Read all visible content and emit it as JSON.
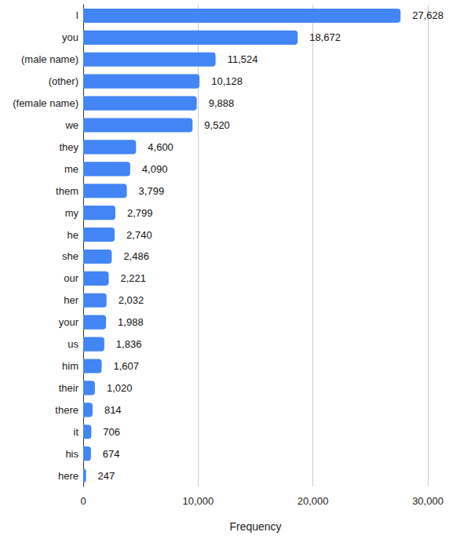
{
  "chart_data": {
    "type": "bar",
    "orientation": "horizontal",
    "categories": [
      "I",
      "you",
      "(male name)",
      "(other)",
      "(female name)",
      "we",
      "they",
      "me",
      "them",
      "my",
      "he",
      "she",
      "our",
      "her",
      "your",
      "us",
      "him",
      "their",
      "there",
      "it",
      "his",
      "here"
    ],
    "values": [
      27628,
      18672,
      11524,
      10128,
      9888,
      9520,
      4600,
      4090,
      3799,
      2799,
      2740,
      2486,
      2221,
      2032,
      1988,
      1836,
      1607,
      1020,
      814,
      706,
      674,
      247
    ],
    "value_labels": [
      "27,628",
      "18,672",
      "11,524",
      "10,128",
      "9,888",
      "9,520",
      "4,600",
      "4,090",
      "3,799",
      "2,799",
      "2,740",
      "2,486",
      "2,221",
      "2,032",
      "1,988",
      "1,836",
      "1,607",
      "1,020",
      "814",
      "706",
      "674",
      "247"
    ],
    "color": "#4285f4",
    "x_label": "Frequency",
    "xlim": [
      0,
      30000
    ],
    "xticks": [
      0,
      {
        "value": 10000,
        "label": "10,000"
      },
      {
        "value": 20000,
        "label": "20,000"
      },
      {
        "value": 30000,
        "label": "30,000"
      }
    ],
    "grid": true,
    "data_labels": true
  }
}
